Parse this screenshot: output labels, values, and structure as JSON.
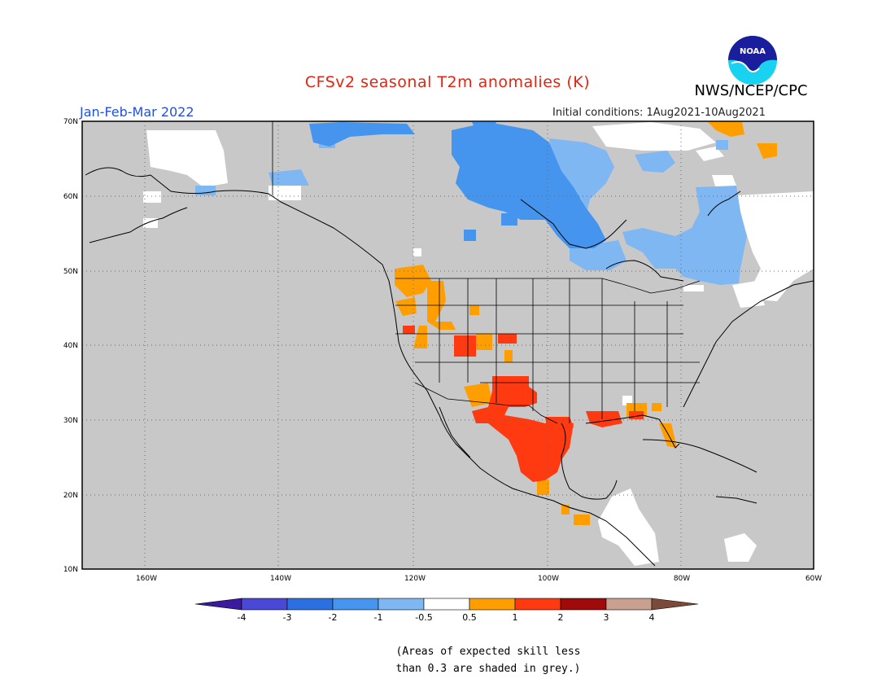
{
  "header": {
    "title": "CFSv2 seasonal T2m anomalies (K)",
    "agency": "NWS/NCEP/CPC",
    "logo_text": "NOAA",
    "period": "Jan-Feb-Mar 2022",
    "initial_conditions": "Initial conditions: 1Aug2021-10Aug2021"
  },
  "map": {
    "lat_ticks": [
      "70N",
      "60N",
      "50N",
      "40N",
      "30N",
      "20N",
      "10N"
    ],
    "lon_ticks": [
      "160W",
      "140W",
      "120W",
      "100W",
      "80W",
      "60W"
    ],
    "background_color": "#c8c8c8",
    "land_fill_note": ""
  },
  "legend": {
    "colors": [
      "#3a1a9e",
      "#4a48d6",
      "#2b6fe0",
      "#4595ee",
      "#7fb7f2",
      "#ffffff",
      "#ff9e00",
      "#ff3a10",
      "#a00a0a",
      "#c9a08f",
      "#7b4a38"
    ],
    "labels": [
      "-4",
      "-3",
      "-2",
      "-1",
      "-0.5",
      "0.5",
      "1",
      "2",
      "3",
      "4"
    ]
  },
  "footnote": {
    "line1": "(Areas of expected skill less",
    "line2": "than 0.3 are shaded in grey.)"
  }
}
